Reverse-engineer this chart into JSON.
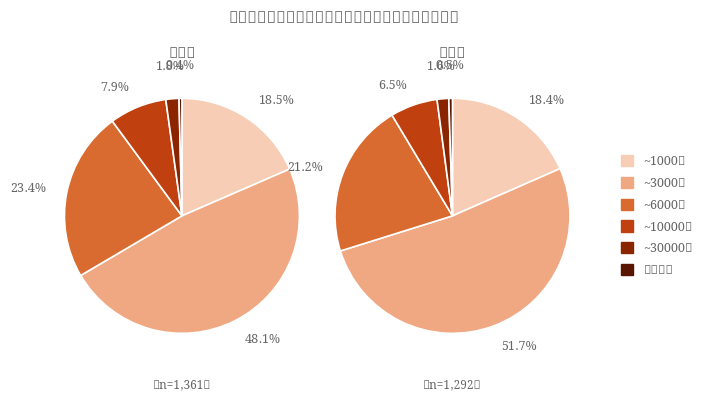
{
  "title": "今年あげるお祝いやプレゼントの予算はいくらですか",
  "chart1_title": "母の日",
  "chart2_title": "父の日",
  "chart1_note": "（n=1,361）",
  "chart2_note": "（n=1,292）",
  "legend_labels": [
    "~1000円",
    "~3000円",
    "~6000円",
    "~10000円",
    "~30000円",
    "それ以上"
  ],
  "colors": [
    "#f7cdb5",
    "#f0a882",
    "#d96b30",
    "#c04010",
    "#8b2500",
    "#5a1500"
  ],
  "chart1_values": [
    18.5,
    48.1,
    23.4,
    7.9,
    1.8,
    0.4
  ],
  "chart2_values": [
    18.4,
    51.7,
    21.2,
    6.5,
    1.6,
    0.5
  ],
  "chart1_labels": [
    "18.5%",
    "48.1%",
    "23.4%",
    "7.9%",
    "1.8%",
    "0.4%"
  ],
  "chart2_labels": [
    "18.4%",
    "51.7%",
    "21.2%",
    "6.5%",
    "1.6%",
    "0.5%"
  ],
  "title_fontsize": 11.5,
  "subtitle_fontsize": 11,
  "label_fontsize": 9,
  "legend_fontsize": 9,
  "note_fontsize": 8.5,
  "background_color": "#ffffff",
  "text_color": "#666666",
  "startangle": 90
}
